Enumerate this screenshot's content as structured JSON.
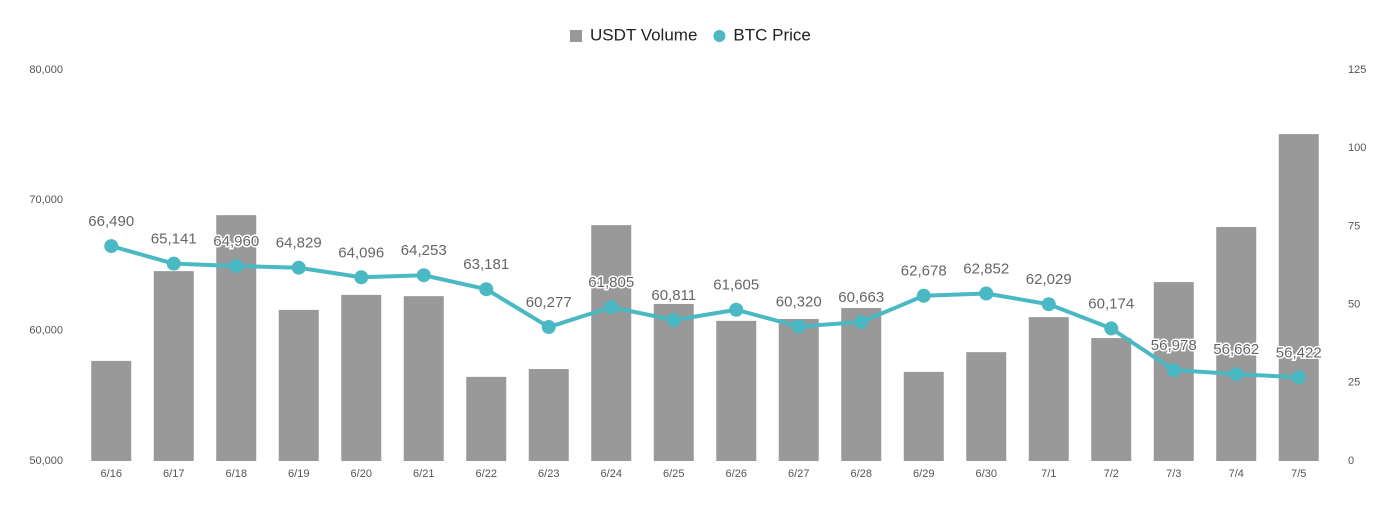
{
  "chart_data": {
    "type": "bar",
    "categories": [
      "6/16",
      "6/17",
      "6/18",
      "6/19",
      "6/20",
      "6/21",
      "6/22",
      "6/23",
      "6/24",
      "6/25",
      "6/26",
      "6/27",
      "6/28",
      "6/29",
      "6/30",
      "7/1",
      "7/2",
      "7/3",
      "7/4",
      "7/5"
    ],
    "series": [
      {
        "name": "USDT Volume",
        "color": "#999999",
        "axis": "y2",
        "values": [
          32,
          60.7,
          78.6,
          48.3,
          53.1,
          52.7,
          26.9,
          29.4,
          75.4,
          50.2,
          44.8,
          45.4,
          48.9,
          28.5,
          34.8,
          46,
          39.3,
          57.2,
          74.8,
          104.5
        ]
      },
      {
        "name": "BTC Price",
        "color": "#4bb9c3",
        "type": "line",
        "values": [
          66490,
          65141,
          64960,
          64829,
          64096,
          64253,
          63181,
          60277,
          61805,
          60811,
          61605,
          60320,
          60663,
          62678,
          62852,
          62029,
          60174,
          56978,
          56662,
          56422
        ],
        "value_labels": [
          "66,490",
          "65,141",
          "64,960",
          "64,829",
          "64,096",
          "64,253",
          "63,181",
          "60,277",
          "61,805",
          "60,811",
          "61,605",
          "60,320",
          "60,663",
          "62,678",
          "62,852",
          "62,029",
          "60,174",
          "56,978",
          "56,662",
          "56,422"
        ]
      }
    ],
    "ylim": [
      50000,
      80000
    ],
    "yticks": [
      {
        "value": 50000,
        "label": "50,000"
      },
      {
        "value": 60000,
        "label": "60,000"
      },
      {
        "value": 70000,
        "label": "70,000"
      },
      {
        "value": 80000,
        "label": "80,000"
      }
    ],
    "y2lim": [
      0,
      125
    ],
    "y2ticks": [
      0,
      25,
      50,
      75,
      100,
      125
    ],
    "legend": "top"
  }
}
